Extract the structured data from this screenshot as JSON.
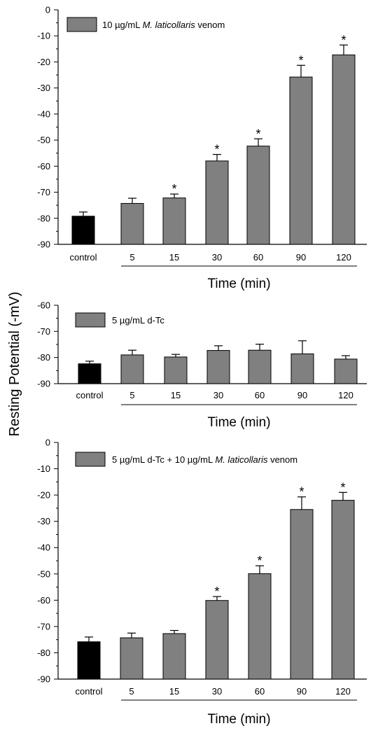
{
  "ylabel": "Resting Potential (-mV)",
  "chart_data": [
    {
      "type": "bar",
      "legend": {
        "segments": [
          {
            "text": "10 µg/mL ",
            "italic": false
          },
          {
            "text": "M. laticollaris",
            "italic": true
          },
          {
            "text": " venom",
            "italic": false
          }
        ],
        "color": "#808080"
      },
      "xlabel": "Time (min)",
      "categories": [
        "control",
        "5",
        "15",
        "30",
        "60",
        "90",
        "120"
      ],
      "values": [
        -79.2,
        -74.3,
        -72.2,
        -58.0,
        -52.3,
        -25.8,
        -17.3
      ],
      "errors": [
        1.6,
        2.0,
        1.5,
        2.5,
        2.8,
        4.5,
        3.8
      ],
      "significant": [
        false,
        false,
        true,
        true,
        true,
        true,
        true
      ],
      "ylim": [
        -90,
        0
      ],
      "yticks": [
        "0",
        "-10",
        "-20",
        "-30",
        "-40",
        "-50",
        "-60",
        "-70",
        "-80",
        "-90"
      ],
      "star_label": "*"
    },
    {
      "type": "bar",
      "legend": {
        "segments": [
          {
            "text": "5 µg/mL d-Tc",
            "italic": false
          }
        ],
        "color": "#808080"
      },
      "xlabel": "Time (min)",
      "categories": [
        "control",
        "5",
        "15",
        "30",
        "60",
        "90",
        "120"
      ],
      "values": [
        -82.4,
        -79.0,
        -79.8,
        -77.3,
        -77.2,
        -78.6,
        -80.6
      ],
      "errors": [
        1.0,
        1.8,
        1.0,
        1.8,
        2.3,
        5.0,
        1.3
      ],
      "significant": [
        false,
        false,
        false,
        false,
        false,
        false,
        false
      ],
      "ylim": [
        -90,
        -60
      ],
      "yticks": [
        "-60",
        "-70",
        "-80",
        "-90"
      ],
      "star_label": "*"
    },
    {
      "type": "bar",
      "legend": {
        "segments": [
          {
            "text": "5 µg/mL d-Tc + 10 µg/mL ",
            "italic": false
          },
          {
            "text": "M. laticollaris",
            "italic": true
          },
          {
            "text": " venom",
            "italic": false
          }
        ],
        "color": "#808080"
      },
      "xlabel": "Time (min)",
      "categories": [
        "control",
        "5",
        "15",
        "30",
        "60",
        "90",
        "120"
      ],
      "values": [
        -75.8,
        -74.3,
        -72.7,
        -60.1,
        -49.9,
        -25.5,
        -22.0
      ],
      "errors": [
        1.8,
        1.8,
        1.2,
        1.5,
        3.0,
        4.8,
        3.0
      ],
      "significant": [
        false,
        false,
        false,
        true,
        true,
        true,
        true
      ],
      "ylim": [
        -90,
        0
      ],
      "yticks": [
        "0",
        "-10",
        "-20",
        "-30",
        "-40",
        "-50",
        "-60",
        "-70",
        "-80",
        "-90"
      ],
      "star_label": "*"
    }
  ],
  "colors": {
    "control_bar": "#000000",
    "treatment_bar": "#808080",
    "axis": "#000000"
  }
}
